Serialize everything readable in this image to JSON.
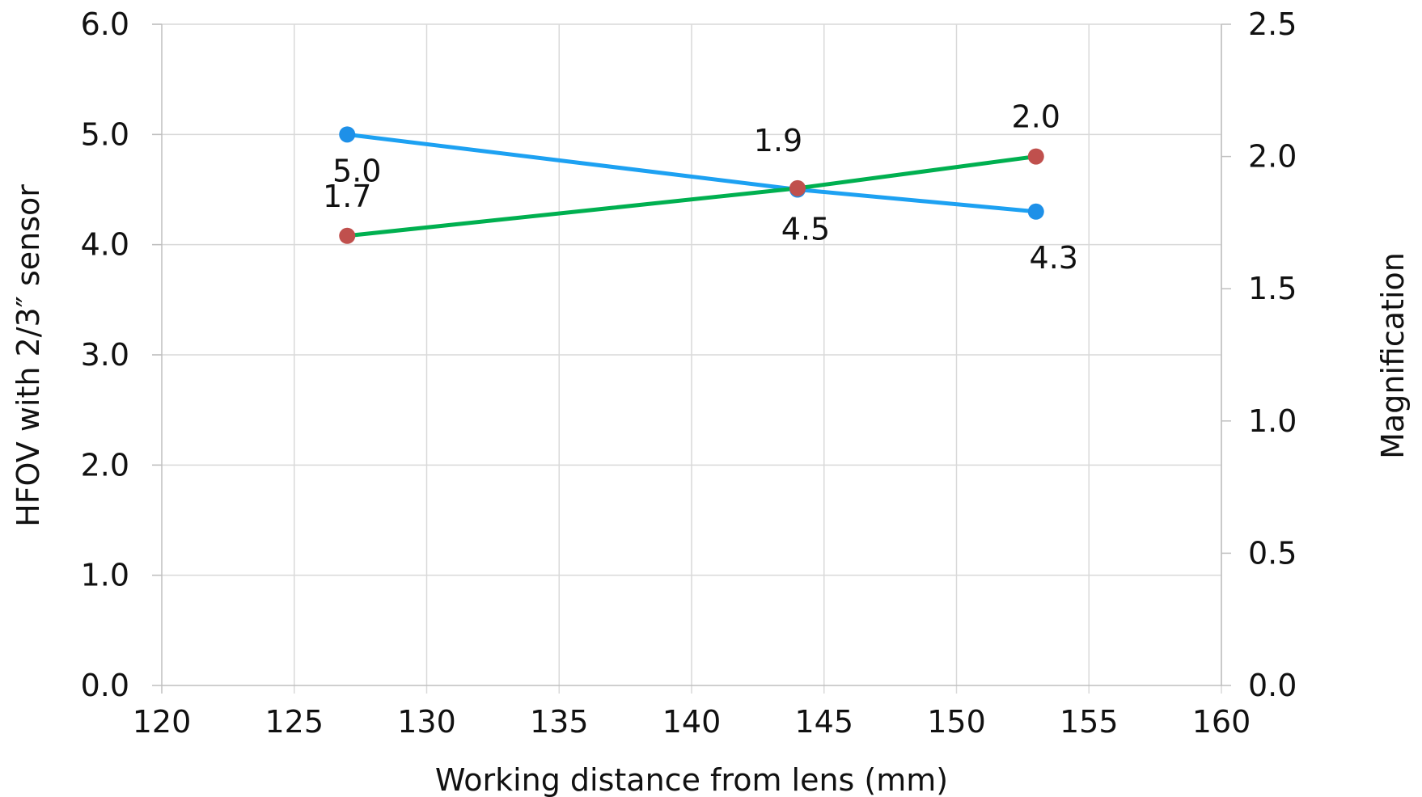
{
  "chart_data": {
    "type": "line",
    "title": "",
    "xlabel": "Working distance from lens (mm)",
    "ylabel": "HFOV with 2/3″ sensor",
    "y2label": "Magnification",
    "xlim": [
      120,
      160
    ],
    "ylim": [
      0,
      6
    ],
    "y2lim": [
      0,
      2.5
    ],
    "x_ticks": [
      "120",
      "125",
      "130",
      "135",
      "140",
      "145",
      "150",
      "155",
      "160"
    ],
    "y_ticks": [
      "0.0",
      "1.0",
      "2.0",
      "3.0",
      "4.0",
      "5.0",
      "6.0"
    ],
    "y2_ticks": [
      "0.0",
      "0.5",
      "1.0",
      "1.5",
      "2.0",
      "2.5"
    ],
    "grid": true,
    "legend": "none",
    "series": [
      {
        "axis": "left",
        "color": "#1da1f2",
        "marker_color": "#1e90e8",
        "points": [
          {
            "x": 127,
            "y": 5.0,
            "label": "5.0"
          },
          {
            "x": 144,
            "y": 4.5,
            "label": "4.5"
          },
          {
            "x": 153,
            "y": 4.3,
            "label": "4.3"
          }
        ]
      },
      {
        "axis": "right",
        "color": "#00b050",
        "marker_color": "#c0504d",
        "points": [
          {
            "x": 127,
            "y": 1.7,
            "label": "1.7"
          },
          {
            "x": 144,
            "y": 1.88,
            "label": "1.9"
          },
          {
            "x": 153,
            "y": 2.0,
            "label": "2.0"
          }
        ]
      }
    ]
  }
}
